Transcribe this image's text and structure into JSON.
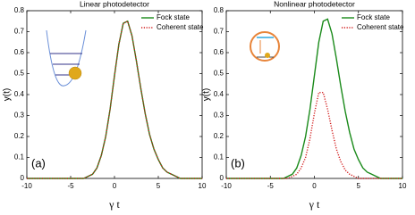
{
  "chart_data": [
    {
      "type": "line",
      "title": "Linear photodetector",
      "xlabel": "γ t",
      "ylabel": "y(t)",
      "annotation": "(a)",
      "x": [
        -10,
        -9.5,
        -9,
        -8.5,
        -8,
        -7.5,
        -7,
        -6.5,
        -6,
        -5.5,
        -5,
        -4.5,
        -4,
        -3.5,
        -3,
        -2.5,
        -2,
        -1.5,
        -1,
        -0.5,
        0,
        0.5,
        1,
        1.5,
        2,
        2.5,
        3,
        3.5,
        4,
        4.5,
        5,
        5.5,
        6,
        6.5,
        7,
        7.5,
        8,
        8.5,
        9,
        9.5,
        10
      ],
      "series": [
        {
          "name": "Fock state",
          "color": "#1a8a1a",
          "linestyle": "solid",
          "values": [
            0,
            0,
            0,
            0,
            0,
            0,
            0,
            0,
            0,
            0,
            0,
            0,
            0,
            0,
            0.01,
            0.02,
            0.05,
            0.11,
            0.2,
            0.33,
            0.49,
            0.64,
            0.74,
            0.75,
            0.68,
            0.56,
            0.43,
            0.31,
            0.21,
            0.14,
            0.09,
            0.05,
            0.03,
            0.02,
            0.01,
            0,
            0,
            0,
            0,
            0,
            0
          ]
        },
        {
          "name": "Coherent state",
          "color": "#d11a1a",
          "linestyle": "dotted",
          "values": [
            0,
            0,
            0,
            0,
            0,
            0,
            0,
            0,
            0,
            0,
            0,
            0,
            0,
            0,
            0.01,
            0.02,
            0.05,
            0.11,
            0.2,
            0.33,
            0.49,
            0.64,
            0.74,
            0.75,
            0.68,
            0.56,
            0.43,
            0.31,
            0.21,
            0.14,
            0.09,
            0.05,
            0.03,
            0.02,
            0.01,
            0,
            0,
            0,
            0,
            0,
            0
          ]
        }
      ],
      "xlim": [
        -10,
        10
      ],
      "ylim": [
        0,
        0.8
      ],
      "xticks": [
        -10,
        -5,
        0,
        5,
        10
      ],
      "yticks": [
        0,
        0.1,
        0.2,
        0.3,
        0.4,
        0.5,
        0.6,
        0.7,
        0.8
      ],
      "legend": "upper right"
    },
    {
      "type": "line",
      "title": "Nonlinear photodetector",
      "xlabel": "γ t",
      "ylabel": "y(t)",
      "annotation": "(b)",
      "x": [
        -10,
        -9.5,
        -9,
        -8.5,
        -8,
        -7.5,
        -7,
        -6.5,
        -6,
        -5.5,
        -5,
        -4.5,
        -4,
        -3.5,
        -3,
        -2.5,
        -2,
        -1.5,
        -1,
        -0.5,
        0,
        0.5,
        1,
        1.5,
        2,
        2.5,
        3,
        3.5,
        4,
        4.5,
        5,
        5.5,
        6,
        6.5,
        7,
        7.5,
        8,
        8.5,
        9,
        9.5,
        10
      ],
      "series": [
        {
          "name": "Fock state",
          "color": "#1a8a1a",
          "linestyle": "solid",
          "values": [
            0,
            0,
            0,
            0,
            0,
            0,
            0,
            0,
            0,
            0,
            0,
            0,
            0,
            0,
            0.01,
            0.02,
            0.05,
            0.11,
            0.2,
            0.33,
            0.49,
            0.65,
            0.75,
            0.76,
            0.69,
            0.57,
            0.44,
            0.32,
            0.22,
            0.14,
            0.09,
            0.05,
            0.03,
            0.02,
            0.01,
            0,
            0,
            0,
            0,
            0,
            0
          ]
        },
        {
          "name": "Coherent state",
          "color": "#d11a1a",
          "linestyle": "dotted",
          "values": [
            0,
            0,
            0,
            0,
            0,
            0,
            0,
            0,
            0,
            0,
            0,
            0,
            0,
            0,
            0,
            0.01,
            0.02,
            0.05,
            0.1,
            0.19,
            0.31,
            0.41,
            0.41,
            0.33,
            0.23,
            0.14,
            0.08,
            0.04,
            0.02,
            0.01,
            0,
            0,
            0,
            0,
            0,
            0,
            0,
            0,
            0,
            0,
            0
          ]
        }
      ],
      "xlim": [
        -10,
        10
      ],
      "ylim": [
        0,
        0.8
      ],
      "xticks": [
        -10,
        -5,
        0,
        5,
        10
      ],
      "yticks": [
        0,
        0.1,
        0.2,
        0.3,
        0.4,
        0.5,
        0.6,
        0.7,
        0.8
      ],
      "legend": "upper right"
    }
  ]
}
